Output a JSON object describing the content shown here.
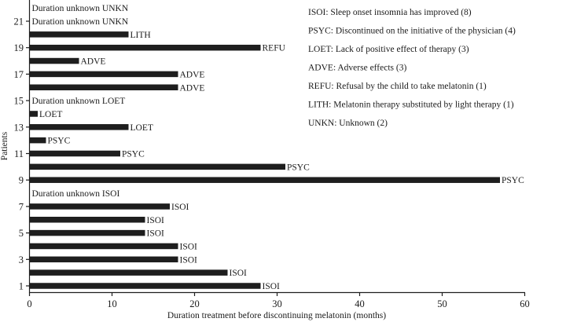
{
  "chart_data": {
    "type": "bar",
    "orientation": "horizontal",
    "xlabel": "Duration treatment before discontinuing melatonin (months)",
    "ylabel": "Patients",
    "xlim": [
      0,
      60
    ],
    "xticks": [
      0,
      10,
      20,
      30,
      40,
      50,
      60
    ],
    "ylim": [
      1,
      21
    ],
    "yticks": [
      1,
      3,
      5,
      7,
      9,
      11,
      13,
      15,
      17,
      19,
      21
    ],
    "grid": false,
    "bars": [
      {
        "patient": 1,
        "value": 28,
        "label": "ISOI"
      },
      {
        "patient": 2,
        "value": 24,
        "label": "ISOI"
      },
      {
        "patient": 3,
        "value": 18,
        "label": "ISOI"
      },
      {
        "patient": 4,
        "value": 18,
        "label": "ISOI"
      },
      {
        "patient": 5,
        "value": 14,
        "label": "ISOI"
      },
      {
        "patient": 6,
        "value": 14,
        "label": "ISOI"
      },
      {
        "patient": 7,
        "value": 17,
        "label": "ISOI"
      },
      {
        "patient": 8,
        "value": null,
        "label": "Duration unknown  ISOI"
      },
      {
        "patient": 9,
        "value": 57,
        "label": "PSYC"
      },
      {
        "patient": 10,
        "value": 31,
        "label": "PSYC"
      },
      {
        "patient": 11,
        "value": 11,
        "label": "PSYC"
      },
      {
        "patient": 12,
        "value": 2,
        "label": "PSYC"
      },
      {
        "patient": 13,
        "value": 12,
        "label": "LOET"
      },
      {
        "patient": 14,
        "value": 1,
        "label": "LOET"
      },
      {
        "patient": 15,
        "value": null,
        "label": "Duration unknown LOET"
      },
      {
        "patient": 16,
        "value": 18,
        "label": "ADVE"
      },
      {
        "patient": 17,
        "value": 18,
        "label": "ADVE"
      },
      {
        "patient": 18,
        "value": 6,
        "label": "ADVE"
      },
      {
        "patient": 19,
        "value": 28,
        "label": "REFU"
      },
      {
        "patient": 20,
        "value": 12,
        "label": "LITH"
      },
      {
        "patient": 21,
        "value": null,
        "label": "Duration unknown UNKN"
      },
      {
        "patient": 22,
        "value": null,
        "label": "Duration unknown UNKN"
      }
    ],
    "legend_position": "top-right",
    "legend": [
      "ISOI: Sleep onset insomnia has improved  (8)",
      "PSYC: Discontinued on the initiative of the physician (4)",
      "LOET: Lack of positive effect of therapy (3)",
      "ADVE: Adverse effects (3)",
      "REFU: Refusal by the child to take melatonin (1)",
      "LITH: Melatonin therapy substituted by light therapy (1)",
      "UNKN: Unknown (2)"
    ]
  }
}
